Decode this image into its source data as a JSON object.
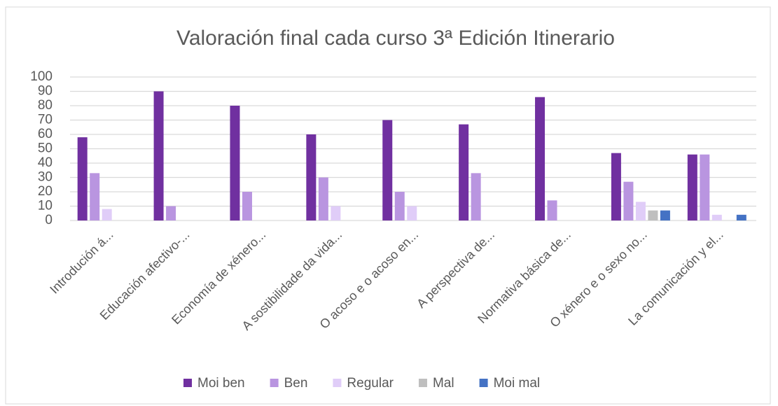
{
  "chart_data": {
    "type": "bar",
    "title": "Valoración final cada curso 3ª Edición Itinerario",
    "categories": [
      "Introdución á...",
      "Educación afectivo-...",
      "Economía de xénero...",
      "A sostibilidade da vida...",
      "O acoso e o acoso en...",
      "A perspectiva de...",
      "Normativa básica de...",
      "O xénero e o sexo no...",
      "La comunicación y el..."
    ],
    "series": [
      {
        "name": "Moi ben",
        "color": "#7030a0",
        "values": [
          58,
          90,
          80,
          60,
          70,
          67,
          86,
          47,
          46
        ]
      },
      {
        "name": "Ben",
        "color": "#b995e0",
        "values": [
          33,
          10,
          20,
          30,
          20,
          33,
          14,
          27,
          46
        ]
      },
      {
        "name": "Regular",
        "color": "#e0cdf8",
        "values": [
          8,
          0,
          0,
          10,
          10,
          0,
          0,
          13,
          4
        ]
      },
      {
        "name": "Mal",
        "color": "#bfbfbf",
        "values": [
          0,
          0,
          0,
          0,
          0,
          0,
          0,
          7,
          0
        ]
      },
      {
        "name": "Moi mal",
        "color": "#4472c4",
        "values": [
          0,
          0,
          0,
          0,
          0,
          0,
          0,
          7,
          4
        ]
      }
    ],
    "ylim": [
      0,
      100
    ],
    "yticks": [
      0,
      10,
      20,
      30,
      40,
      50,
      60,
      70,
      80,
      90,
      100
    ],
    "grid": true,
    "legend": "bottom"
  }
}
